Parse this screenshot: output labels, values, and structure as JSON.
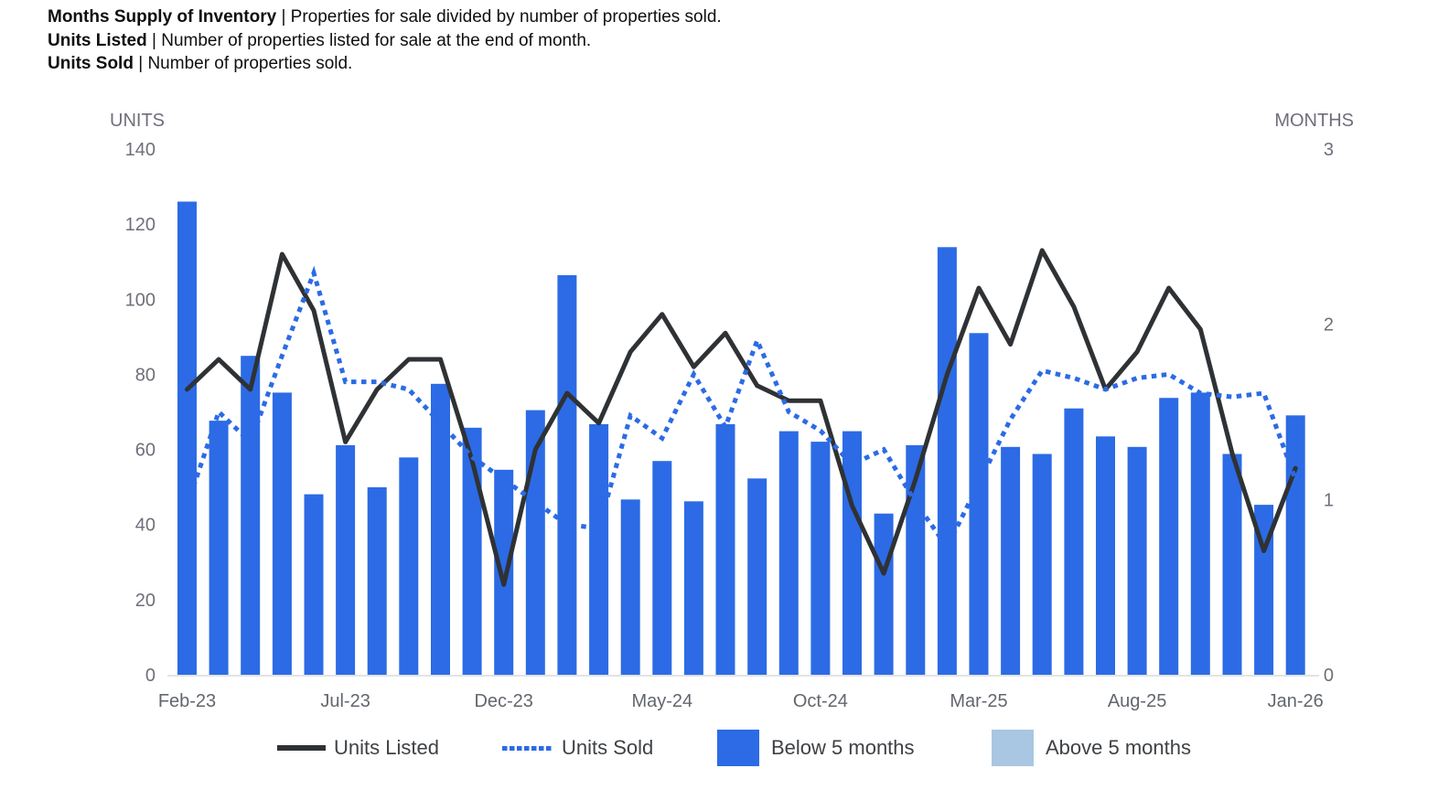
{
  "header": {
    "lines": [
      {
        "term": "Months Supply of Inventory",
        "rest": "| Properties for sale divided by number of properties sold."
      },
      {
        "term": "Units Listed",
        "rest": "| Number of properties listed for sale at the end of month."
      },
      {
        "term": "Units Sold",
        "rest": "| Number of properties sold."
      }
    ]
  },
  "colors": {
    "bar_below_5_months": "#2C6BE5",
    "bar_above_5_months": "#A9C6E2",
    "units_listed_line": "#2F3235",
    "units_sold_line": "#2C6BE5",
    "axis_label_gray": "#6F6F7B",
    "x_label_gray": "#62666E",
    "legend_text": "#3E4145",
    "axis_line": "#D8DADC"
  },
  "chart_data": {
    "type": "combo-bar-line-dual-axis",
    "grid": false,
    "legend_position": "bottom",
    "categories": [
      "Feb-23",
      "Mar-23",
      "Apr-23",
      "May-23",
      "Jun-23",
      "Jul-23",
      "Aug-23",
      "Sep-23",
      "Oct-23",
      "Nov-23",
      "Dec-23",
      "Jan-24",
      "Feb-24",
      "Mar-24",
      "Apr-24",
      "May-24",
      "Jun-24",
      "Jul-24",
      "Aug-24",
      "Sep-24",
      "Oct-24",
      "Nov-24",
      "Dec-24",
      "Jan-25",
      "Feb-25",
      "Mar-25",
      "Apr-25",
      "May-25",
      "Jun-25",
      "Jul-25",
      "Aug-25",
      "Sep-25",
      "Oct-25",
      "Nov-25",
      "Dec-25",
      "Jan-26"
    ],
    "x_axis": {
      "tick_labels": [
        "Feb-23",
        "Jul-23",
        "Dec-23",
        "May-24",
        "Oct-24",
        "Mar-25",
        "Aug-25",
        "Jan-26"
      ],
      "tick_every": 5
    },
    "left_axis": {
      "title": "UNITS",
      "range": [
        0,
        140
      ],
      "ticks": [
        0,
        20,
        40,
        60,
        80,
        100,
        120,
        140
      ]
    },
    "right_axis": {
      "title": "MONTHS",
      "range": [
        0,
        3
      ],
      "ticks": [
        0,
        1,
        2,
        3
      ]
    },
    "series": [
      {
        "name": "Units Listed",
        "type": "line",
        "style": "solid",
        "axis": "left",
        "values": [
          76,
          84,
          76,
          112,
          97,
          62,
          76,
          84,
          84,
          57,
          24,
          60,
          75,
          67,
          86,
          96,
          82,
          91,
          77,
          73,
          73,
          45,
          27,
          52,
          80,
          103,
          88,
          113,
          98,
          76,
          86,
          103,
          92,
          59,
          33,
          55
        ]
      },
      {
        "name": "Units Sold",
        "type": "line",
        "style": "dotted",
        "axis": "left",
        "values": [
          45,
          70,
          62,
          85,
          107,
          78,
          78,
          76,
          67,
          58,
          52,
          46,
          40,
          39,
          69,
          63,
          80,
          66,
          89,
          70,
          65,
          56,
          60,
          46,
          34,
          51,
          68,
          81,
          79,
          76,
          79,
          80,
          75,
          74,
          75,
          52
        ]
      },
      {
        "name": "Months Supply of Inventory",
        "type": "bar",
        "axis": "right",
        "segment": "Below 5 months",
        "values": [
          2.7,
          1.45,
          1.82,
          1.61,
          1.03,
          1.31,
          1.07,
          1.24,
          1.66,
          1.41,
          1.17,
          1.51,
          2.28,
          1.43,
          1.0,
          1.22,
          0.99,
          1.43,
          1.12,
          1.39,
          1.33,
          1.39,
          0.92,
          1.31,
          2.44,
          1.95,
          1.3,
          1.26,
          1.52,
          1.36,
          1.3,
          1.58,
          1.61,
          1.26,
          0.97,
          1.48
        ]
      }
    ],
    "legend": [
      {
        "label": "Units Listed",
        "swatch": "solid-line-black"
      },
      {
        "label": "Units Sold",
        "swatch": "dotted-line-blue"
      },
      {
        "label": "Below 5 months",
        "swatch": "square-blue"
      },
      {
        "label": "Above 5 months",
        "swatch": "square-lightblue"
      }
    ]
  }
}
